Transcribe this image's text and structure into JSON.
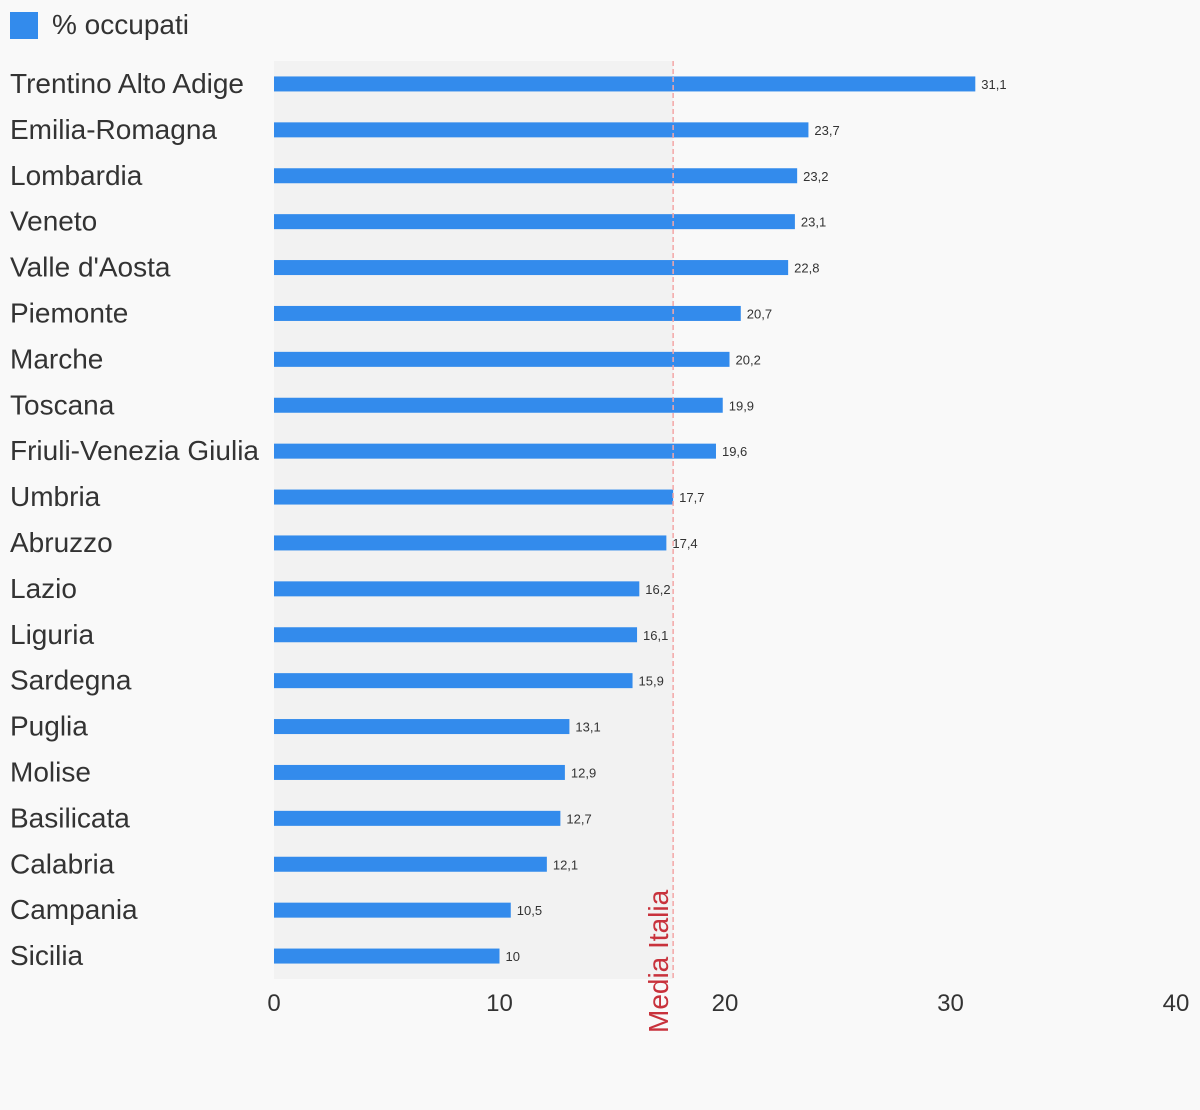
{
  "legend": {
    "label": "% occupati",
    "color": "#338bec"
  },
  "colors": {
    "bar": "#338bec",
    "band": "#f2f2f2",
    "reference": "#c8323c",
    "text": "#333333"
  },
  "chart_data": {
    "type": "bar",
    "orientation": "horizontal",
    "title": "",
    "xlabel": "",
    "ylabel": "",
    "categories": [
      "Trentino Alto Adige",
      "Emilia-Romagna",
      "Lombardia",
      "Veneto",
      "Valle d'Aosta",
      "Piemonte",
      "Marche",
      "Toscana",
      "Friuli-Venezia Giulia",
      "Umbria",
      "Abruzzo",
      "Lazio",
      "Liguria",
      "Sardegna",
      "Puglia",
      "Molise",
      "Basilicata",
      "Calabria",
      "Campania",
      "Sicilia"
    ],
    "series": [
      {
        "name": "% occupati",
        "values": [
          31.1,
          23.7,
          23.2,
          23.1,
          22.8,
          20.7,
          20.2,
          19.9,
          19.6,
          17.7,
          17.4,
          16.2,
          16.1,
          15.9,
          13.1,
          12.9,
          12.7,
          12.1,
          10.5,
          10
        ]
      }
    ],
    "value_labels": [
      "31,1",
      "23,7",
      "23,2",
      "23,1",
      "22,8",
      "20,7",
      "20,2",
      "19,9",
      "19,6",
      "17,7",
      "17,4",
      "16,2",
      "16,1",
      "15,9",
      "13,1",
      "12,9",
      "12,7",
      "12,1",
      "10,5",
      "10"
    ],
    "xlim": [
      0,
      40
    ],
    "xticks": [
      0,
      10,
      20,
      30,
      40
    ],
    "xtick_labels": [
      "0",
      "10",
      "20",
      "30",
      "40"
    ],
    "reference_line": {
      "label": "Media Italia",
      "value": 17.7
    },
    "legend_position": "top-left",
    "grid": false
  }
}
